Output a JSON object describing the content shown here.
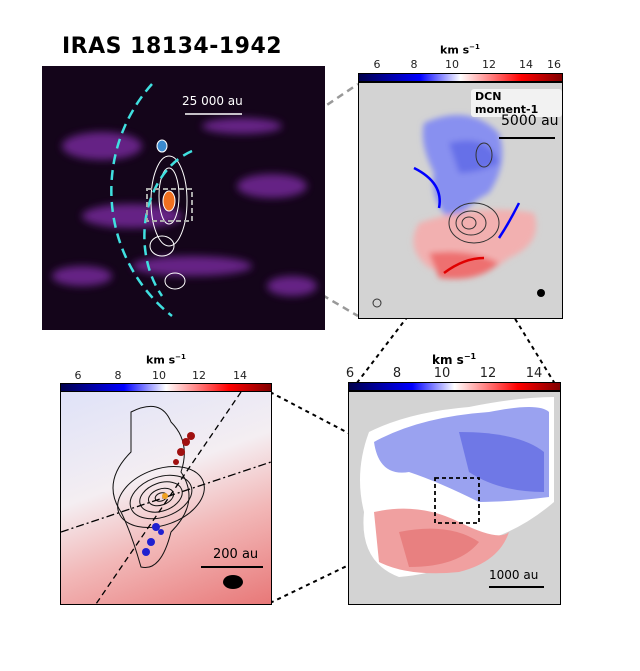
{
  "figure": {
    "title": "IRAS 18134-1942",
    "panel_a": {
      "scale_label": "25 000 au"
    },
    "panel_b": {
      "colorbar_label": "km s",
      "colorbar_exp": "−1",
      "ticks": [
        "6",
        "8",
        "10",
        "12",
        "14",
        "16"
      ],
      "map_label": "DCN moment-1",
      "scale_label": "5000 au"
    },
    "panel_c": {
      "colorbar_label": "km s",
      "colorbar_exp": "−1",
      "ticks": [
        "6",
        "8",
        "10",
        "12",
        "14"
      ],
      "scale_label": "200 au"
    },
    "panel_d": {
      "colorbar_label": "km s",
      "colorbar_exp": "−1",
      "ticks": [
        "6",
        "8",
        "10",
        "12",
        "14"
      ],
      "scale_label": "1000 au"
    },
    "colors": {
      "blue": "#0000ff",
      "red": "#ff0000",
      "background": "#d3d3d3",
      "dark_bg": "#1a0720",
      "dashed_arc": "#40e0e0"
    }
  }
}
